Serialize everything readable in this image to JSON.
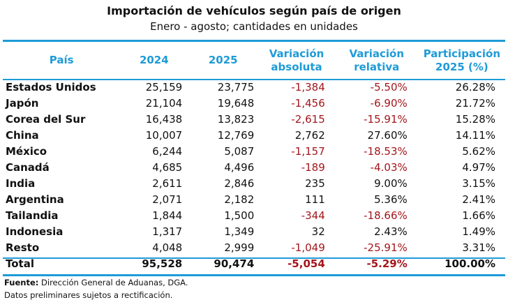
{
  "title": "Importación de vehículos según país de origen",
  "subtitle": "Enero - agosto; cantidades en unidades",
  "colors": {
    "header": "#1e9bd7",
    "negative": "#a3161c",
    "rule": "#1e9bd7"
  },
  "chart_data": {
    "type": "table",
    "columns": [
      "País",
      "2024",
      "2025",
      "Variación absoluta",
      "Variación relativa",
      "Participación 2025 (%)"
    ],
    "rows": [
      [
        "Estados Unidos",
        "25,159",
        "23,775",
        "-1,384",
        "-5.50%",
        "26.28%"
      ],
      [
        "Japón",
        "21,104",
        "19,648",
        "-1,456",
        "-6.90%",
        "21.72%"
      ],
      [
        "Corea del Sur",
        "16,438",
        "13,823",
        "-2,615",
        "-15.91%",
        "15.28%"
      ],
      [
        "China",
        "10,007",
        "12,769",
        "2,762",
        "27.60%",
        "14.11%"
      ],
      [
        "México",
        "6,244",
        "5,087",
        "-1,157",
        "-18.53%",
        "5.62%"
      ],
      [
        "Canadá",
        "4,685",
        "4,496",
        "-189",
        "-4.03%",
        "4.97%"
      ],
      [
        "India",
        "2,611",
        "2,846",
        "235",
        "9.00%",
        "3.15%"
      ],
      [
        "Argentina",
        "2,071",
        "2,182",
        "111",
        "5.36%",
        "2.41%"
      ],
      [
        "Tailandia",
        "1,844",
        "1,500",
        "-344",
        "-18.66%",
        "1.66%"
      ],
      [
        "Indonesia",
        "1,317",
        "1,349",
        "32",
        "2.43%",
        "1.49%"
      ],
      [
        "Resto",
        "4,048",
        "2,999",
        "-1,049",
        "-25.91%",
        "3.31%"
      ]
    ],
    "total": [
      "Total",
      "95,528",
      "90,474",
      "-5,054",
      "-5.29%",
      "100.00%"
    ]
  },
  "source_label": "Fuente:",
  "source_text": " Dirección General de Aduanas, DGA.",
  "note": "Datos preliminares sujetos a rectificación."
}
